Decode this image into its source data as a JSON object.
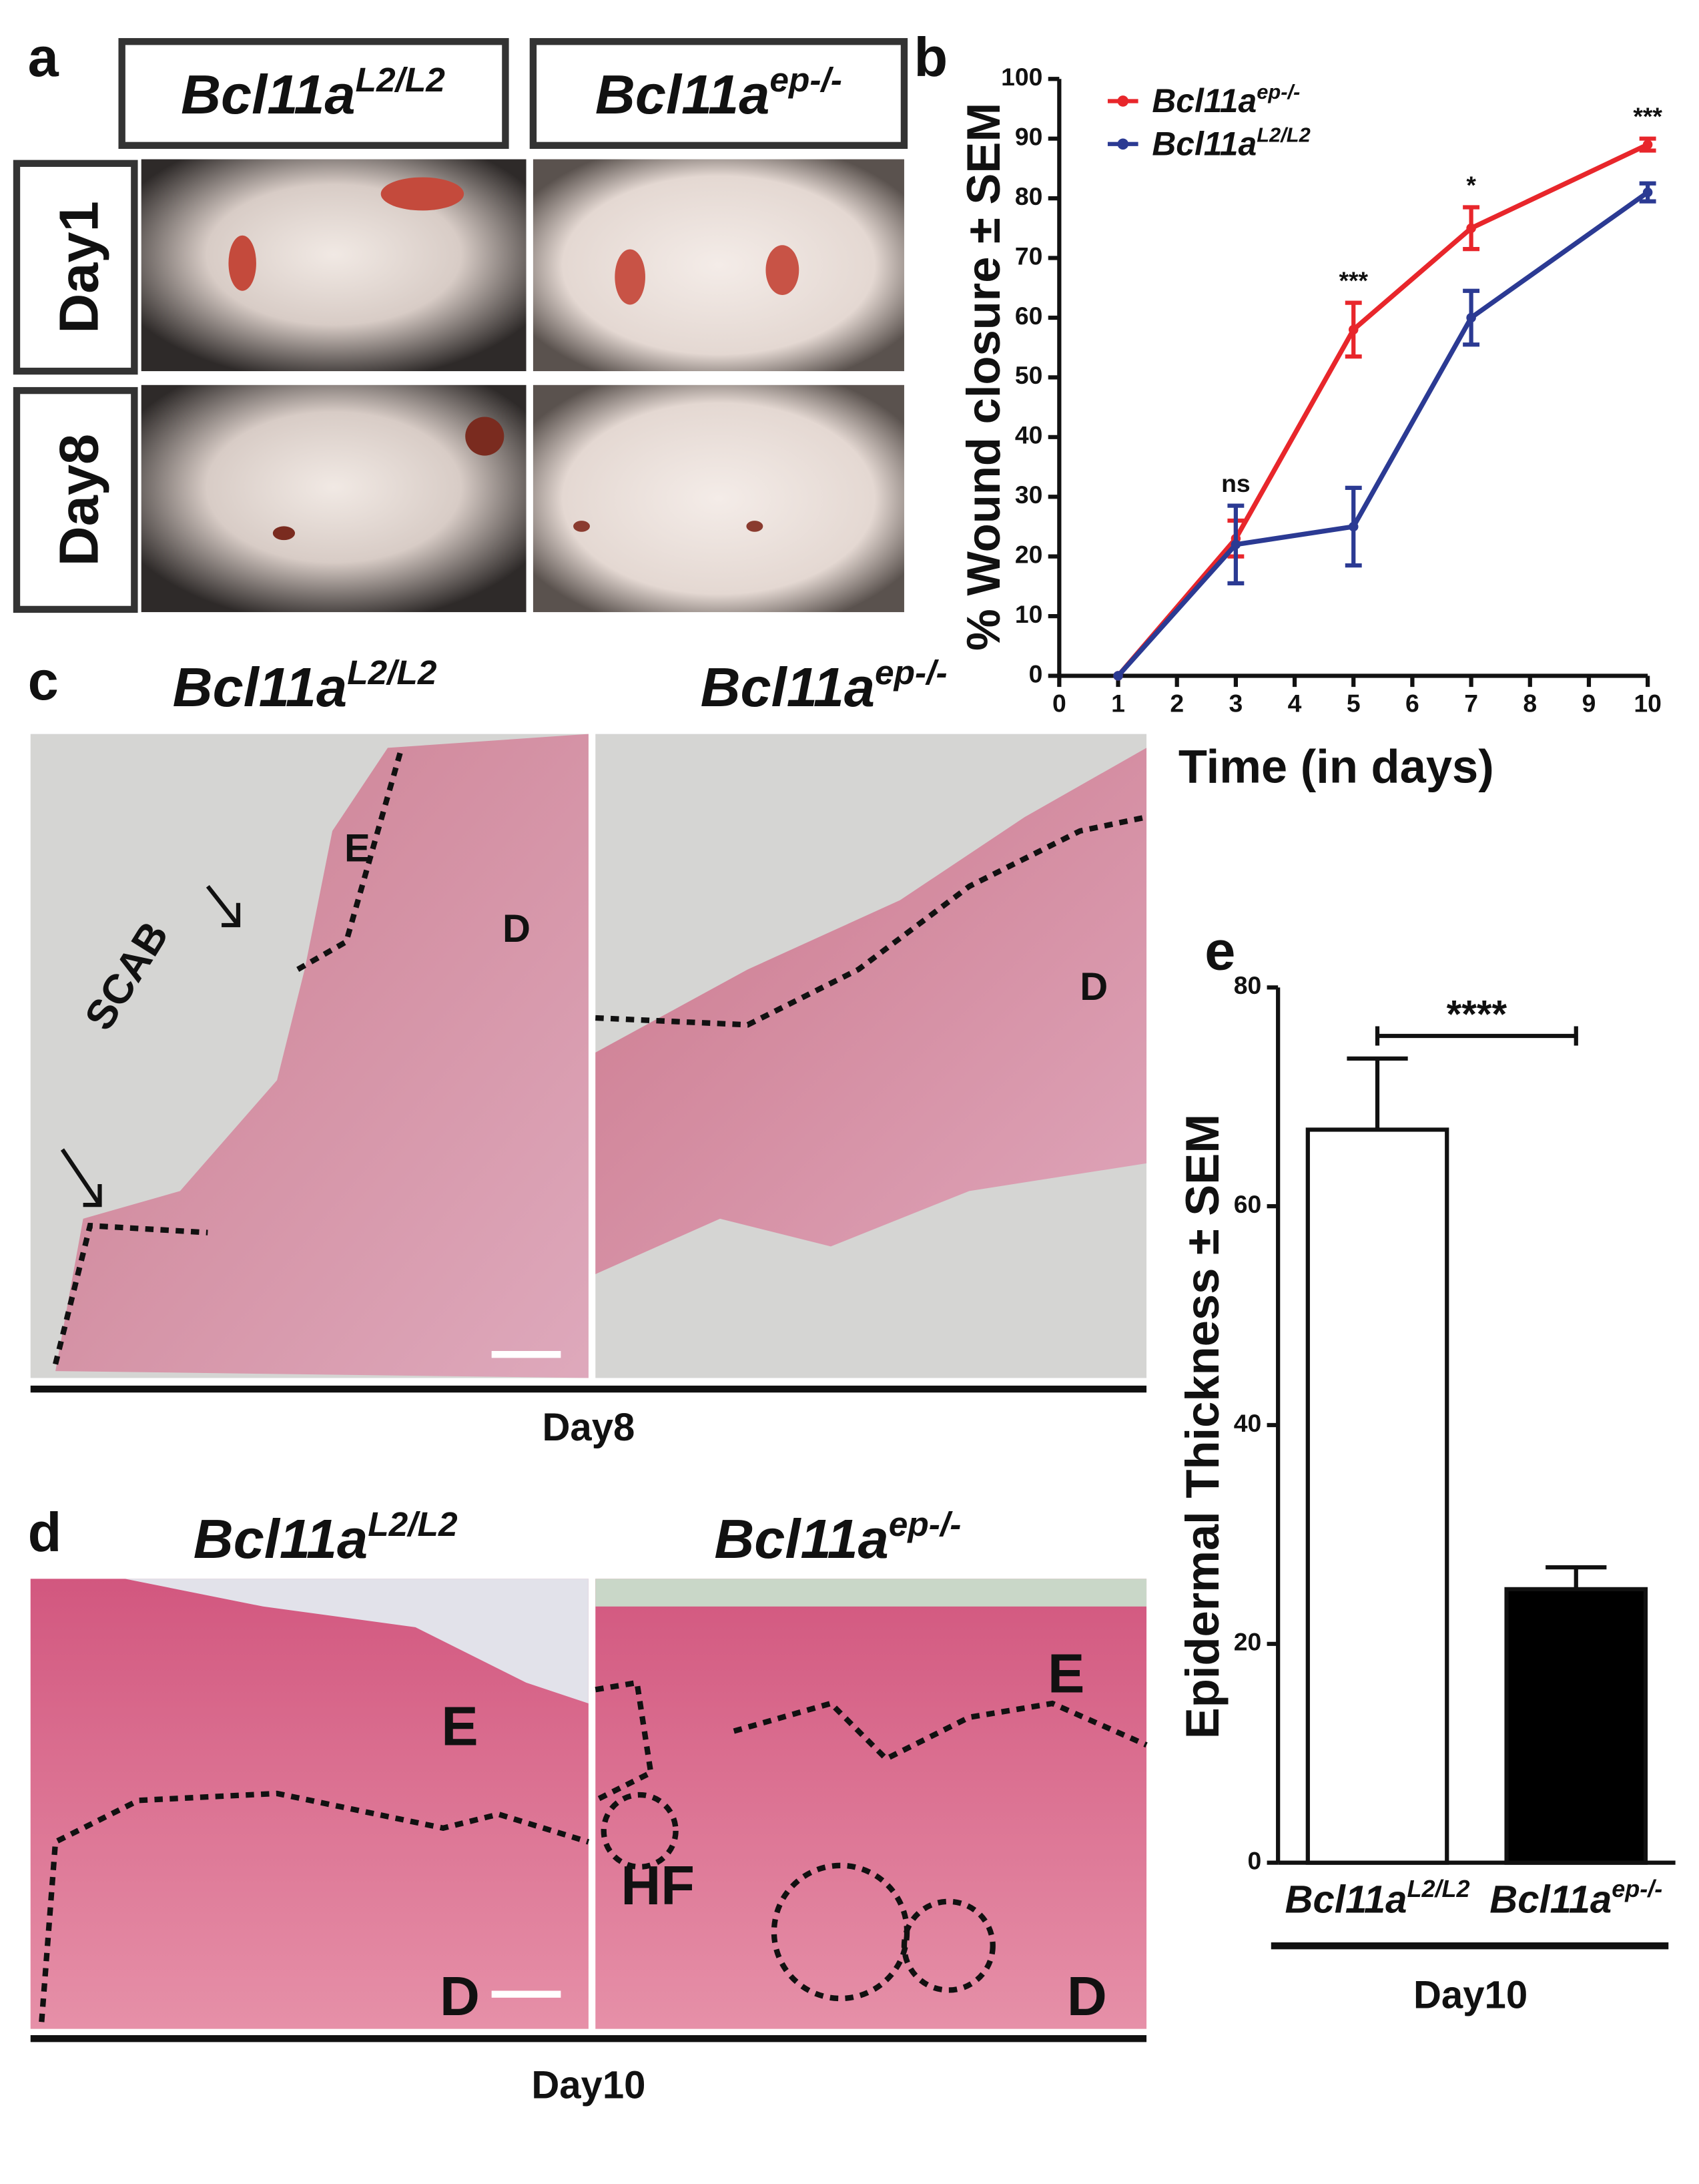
{
  "panel_letters": [
    "a",
    "b",
    "c",
    "d",
    "e"
  ],
  "panel_a": {
    "columns": [
      {
        "base": "Bcl11a",
        "sup": "L2/L2"
      },
      {
        "base": "Bcl11a",
        "sup": "ep-/-"
      }
    ],
    "rows": [
      "Day1",
      "Day8"
    ]
  },
  "panel_c": {
    "titles": [
      {
        "base": "Bcl11a",
        "sup": "L2/L2"
      },
      {
        "base": "Bcl11a",
        "sup": "ep-/-"
      }
    ],
    "labels": [
      "SCAB",
      "E",
      "D",
      "D"
    ],
    "caption": "Day8"
  },
  "panel_d": {
    "titles": [
      {
        "base": "Bcl11a",
        "sup": "L2/L2"
      },
      {
        "base": "Bcl11a",
        "sup": "ep-/-"
      }
    ],
    "labels": [
      "E",
      "D",
      "E",
      "HF",
      "D"
    ],
    "caption": "Day10"
  },
  "chart_data": [
    {
      "type": "line",
      "ylabel": "% Wound closure ± SEM",
      "xlabel": "Time (in days)",
      "x": [
        1,
        3,
        5,
        7,
        10
      ],
      "series": [
        {
          "name": "Bcl11a",
          "name_sup": "ep-/-",
          "color": "#e8262b",
          "values": [
            0,
            23,
            58,
            75,
            89
          ],
          "errors": [
            null,
            3,
            4.5,
            3.5,
            1
          ]
        },
        {
          "name": "Bcl11a",
          "name_sup": "L2/L2",
          "color": "#2b3a93",
          "values": [
            0,
            22,
            25,
            60,
            81
          ],
          "errors": [
            null,
            6.5,
            6.5,
            4.5,
            1.5
          ]
        }
      ],
      "significance": [
        null,
        "ns",
        "***",
        "*",
        "***"
      ],
      "xlim": [
        0,
        10
      ],
      "xticks": [
        0,
        1,
        2,
        3,
        4,
        5,
        6,
        7,
        8,
        9,
        10
      ],
      "ylim": [
        0,
        100
      ],
      "yticks": [
        0,
        10,
        20,
        30,
        40,
        50,
        60,
        70,
        80,
        90,
        100
      ]
    },
    {
      "type": "bar",
      "ylabel": "Epidermal Thickness ± SEM",
      "categories": [
        "Bcl11a",
        "Bcl11a"
      ],
      "category_sups": [
        "L2/L2",
        "ep-/-"
      ],
      "values": [
        67,
        25
      ],
      "errors": [
        6.5,
        2
      ],
      "colors": [
        "#ffffff",
        "#000000"
      ],
      "significance": "****",
      "group_label": "Day10",
      "ylim": [
        0,
        80
      ],
      "yticks": [
        0,
        20,
        40,
        60,
        80
      ]
    }
  ]
}
